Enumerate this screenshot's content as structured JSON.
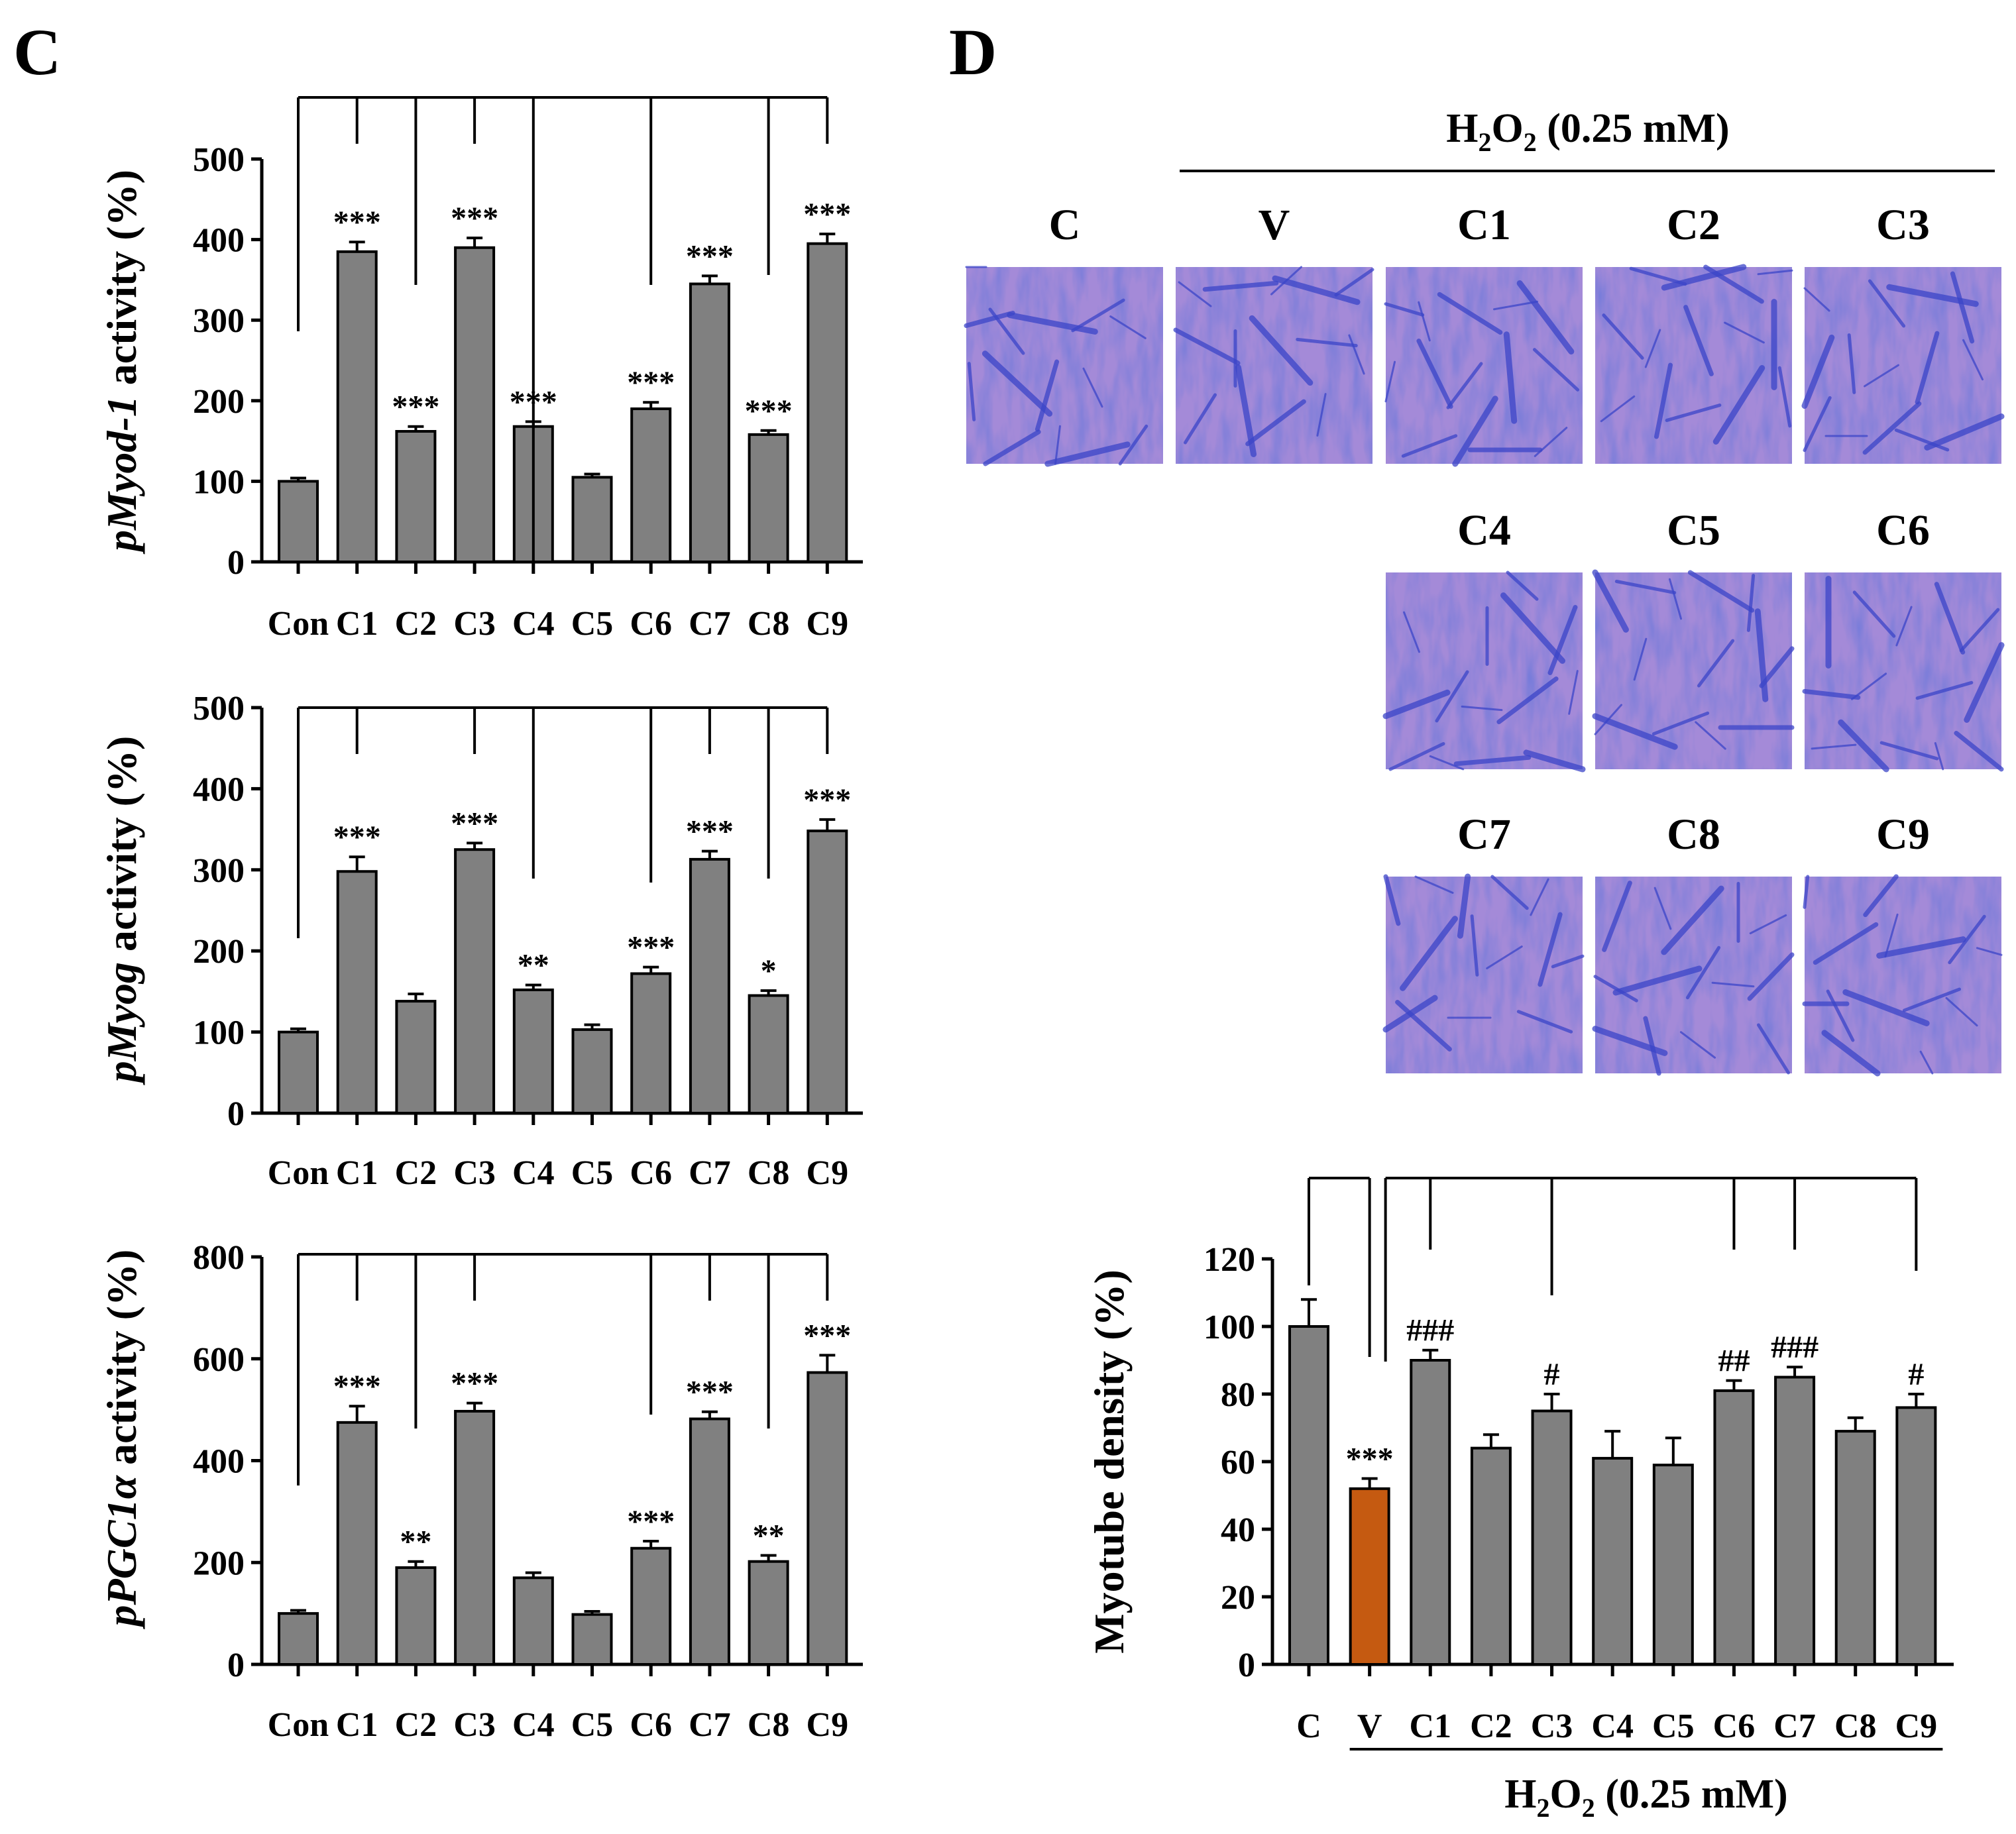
{
  "panels": {
    "C": {
      "label": "C"
    },
    "D": {
      "label": "D"
    }
  },
  "colors": {
    "bar": "#808080",
    "highlight_bar": "#c55a11",
    "cell_dark": "#3b45c8",
    "cell_light": "#a48ad8"
  },
  "images_section": {
    "header_chem": "H",
    "header_sub": "2",
    "header_chem2": "O",
    "header_sub2": "2",
    "header_rest": " (0.25 mM)",
    "tiles": [
      {
        "label": "C"
      },
      {
        "label": "V"
      },
      {
        "label": "C1"
      },
      {
        "label": "C2"
      },
      {
        "label": "C3"
      },
      {
        "label": "C4"
      },
      {
        "label": "C5"
      },
      {
        "label": "C6"
      },
      {
        "label": "C7"
      },
      {
        "label": "C8"
      },
      {
        "label": "C9"
      }
    ]
  },
  "chart_data": [
    {
      "type": "bar",
      "ylabel_italic": "pMyod-1",
      "ylabel_rest": " activity (%)",
      "categories": [
        "Con",
        "C1",
        "C2",
        "C3",
        "C4",
        "C5",
        "C6",
        "C7",
        "C8",
        "C9"
      ],
      "values": [
        100,
        385,
        162,
        390,
        168,
        105,
        190,
        345,
        158,
        395
      ],
      "errors": [
        4,
        12,
        6,
        12,
        6,
        4,
        8,
        10,
        5,
        12
      ],
      "annotations": [
        "",
        "***",
        "***",
        "***",
        "***",
        "",
        "***",
        "***",
        "***",
        "***"
      ],
      "yticks": [
        0,
        100,
        200,
        300,
        400,
        500
      ],
      "ylim": [
        0,
        500
      ]
    },
    {
      "type": "bar",
      "ylabel_italic": "pMyog",
      "ylabel_rest": " activity (%)",
      "categories": [
        "Con",
        "C1",
        "C2",
        "C3",
        "C4",
        "C5",
        "C6",
        "C7",
        "C8",
        "C9"
      ],
      "values": [
        100,
        298,
        138,
        325,
        152,
        103,
        172,
        313,
        145,
        348
      ],
      "errors": [
        4,
        18,
        9,
        8,
        6,
        6,
        8,
        10,
        6,
        14
      ],
      "annotations": [
        "",
        "***",
        "",
        "***",
        "**",
        "",
        "***",
        "***",
        "*",
        "***"
      ],
      "yticks": [
        0,
        100,
        200,
        300,
        400,
        500
      ],
      "ylim": [
        0,
        500
      ]
    },
    {
      "type": "bar",
      "ylabel_italic": "pPGC1α",
      "ylabel_rest": " activity (%)",
      "categories": [
        "Con",
        "C1",
        "C2",
        "C3",
        "C4",
        "C5",
        "C6",
        "C7",
        "C8",
        "C9"
      ],
      "values": [
        100,
        475,
        190,
        497,
        170,
        98,
        228,
        482,
        202,
        573
      ],
      "errors": [
        6,
        32,
        12,
        16,
        10,
        6,
        14,
        14,
        12,
        34
      ],
      "annotations": [
        "",
        "***",
        "**",
        "***",
        "",
        "",
        "***",
        "***",
        "**",
        "***"
      ],
      "yticks": [
        0,
        200,
        400,
        600,
        800
      ],
      "ylim": [
        0,
        800
      ]
    },
    {
      "type": "bar",
      "ylabel": "Myotube density (%)",
      "categories": [
        "C",
        "V",
        "C1",
        "C2",
        "C3",
        "C4",
        "C5",
        "C6",
        "C7",
        "C8",
        "C9"
      ],
      "values": [
        100,
        52,
        90,
        64,
        75,
        61,
        59,
        81,
        85,
        69,
        76
      ],
      "errors": [
        8,
        3,
        3,
        4,
        5,
        8,
        8,
        3,
        3,
        4,
        4
      ],
      "annotations": [
        "",
        "***",
        "###",
        "",
        "#",
        "",
        "",
        "##",
        "###",
        "",
        "#"
      ],
      "yticks": [
        0,
        20,
        40,
        60,
        80,
        100,
        120
      ],
      "ylim": [
        0,
        120
      ],
      "xgroup_chem": "H",
      "xgroup_sub": "2",
      "xgroup_chem2": "O",
      "xgroup_sub2": "2",
      "xgroup_rest": " (0.25 mM)"
    }
  ]
}
